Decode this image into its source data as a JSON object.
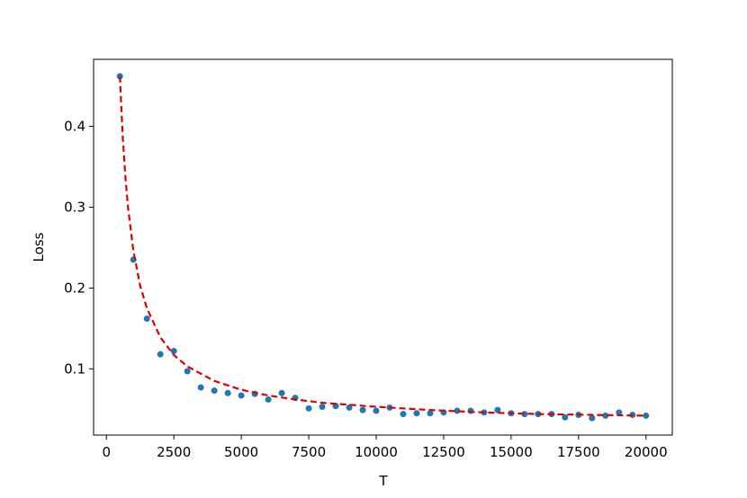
{
  "chart_data": {
    "type": "scatter",
    "x_label": "T",
    "y_label": "Loss",
    "xlim": [
      -475,
      20975
    ],
    "ylim": [
      0.018,
      0.483
    ],
    "xticks": [
      0,
      2500,
      5000,
      7500,
      10000,
      12500,
      15000,
      17500,
      20000
    ],
    "yticks": [
      0.1,
      0.2,
      0.3,
      0.4
    ],
    "series": [
      {
        "type": "scatter",
        "color": "#1f77b4",
        "x": [
          500,
          1000,
          1500,
          2000,
          2500,
          3000,
          3500,
          4000,
          4500,
          5000,
          5500,
          6000,
          6500,
          7000,
          7500,
          8000,
          8500,
          9000,
          9500,
          10000,
          10500,
          11000,
          11500,
          12000,
          12500,
          13000,
          13500,
          14000,
          14500,
          15000,
          15500,
          16000,
          16500,
          17000,
          17500,
          18000,
          18500,
          19000,
          19500,
          20000
        ],
        "values": [
          0.462,
          0.235,
          0.162,
          0.118,
          0.122,
          0.097,
          0.077,
          0.073,
          0.07,
          0.067,
          0.069,
          0.062,
          0.07,
          0.064,
          0.051,
          0.053,
          0.054,
          0.052,
          0.049,
          0.048,
          0.052,
          0.044,
          0.045,
          0.045,
          0.046,
          0.048,
          0.048,
          0.046,
          0.049,
          0.045,
          0.044,
          0.044,
          0.044,
          0.04,
          0.043,
          0.039,
          0.042,
          0.046,
          0.043,
          0.042
        ]
      },
      {
        "type": "line",
        "color": "#e00000",
        "linestyle": "dashed",
        "x": [
          500,
          600,
          700,
          800,
          1000,
          1250,
          1500,
          2000,
          2500,
          3000,
          4000,
          5000,
          6000,
          7000,
          8000,
          10000,
          12000,
          14000,
          16000,
          18000,
          20000
        ],
        "values": [
          0.462,
          0.39,
          0.339,
          0.3,
          0.246,
          0.203,
          0.175,
          0.139,
          0.117,
          0.103,
          0.085,
          0.074,
          0.067,
          0.062,
          0.058,
          0.053,
          0.049,
          0.046,
          0.044,
          0.043,
          0.042
        ]
      }
    ]
  }
}
